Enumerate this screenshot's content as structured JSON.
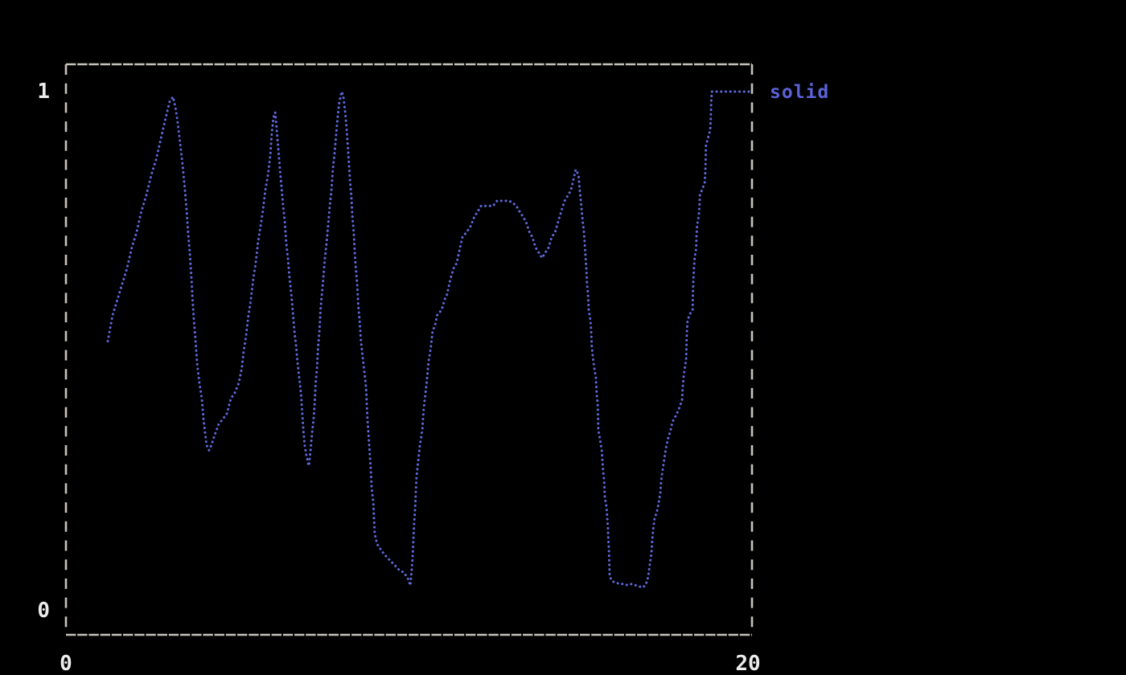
{
  "figure": {
    "background": "#000000",
    "border_color": "#c6c3bb",
    "axis_label_color": "#ececec"
  },
  "axes": {
    "y_top_label": "1",
    "y_bottom_label": "0",
    "x_left_label": "0",
    "x_right_label": "20"
  },
  "legend": {
    "label": "solid",
    "color": "#5a63d9",
    "position": "outside-top-right"
  },
  "chart_data": {
    "type": "line",
    "style": "dotted-braille-terminal",
    "title": "",
    "xlabel": "",
    "ylabel": "",
    "xlim": [
      0,
      20
    ],
    "ylim": [
      0,
      1
    ],
    "x_ticks": [
      0,
      20
    ],
    "y_ticks": [
      0,
      1
    ],
    "grid": false,
    "legend_position": "right-of-plot-top",
    "series": [
      {
        "name": "solid",
        "color": "#5d6ade",
        "marker": "dot",
        "points": [
          [
            1.22,
            0.52
          ],
          [
            1.36,
            0.57
          ],
          [
            1.5,
            0.6
          ],
          [
            1.64,
            0.63
          ],
          [
            1.78,
            0.66
          ],
          [
            1.92,
            0.7
          ],
          [
            2.06,
            0.73
          ],
          [
            2.2,
            0.77
          ],
          [
            2.34,
            0.8
          ],
          [
            2.49,
            0.84
          ],
          [
            2.63,
            0.87
          ],
          [
            2.77,
            0.91
          ],
          [
            2.91,
            0.95
          ],
          [
            3.02,
            0.98
          ],
          [
            3.12,
            0.99
          ],
          [
            3.19,
            0.97
          ],
          [
            3.26,
            0.94
          ],
          [
            3.33,
            0.9
          ],
          [
            3.4,
            0.86
          ],
          [
            3.47,
            0.81
          ],
          [
            3.52,
            0.77
          ],
          [
            3.56,
            0.73
          ],
          [
            3.61,
            0.69
          ],
          [
            3.66,
            0.64
          ],
          [
            3.69,
            0.6
          ],
          [
            3.73,
            0.56
          ],
          [
            3.78,
            0.52
          ],
          [
            3.82,
            0.48
          ],
          [
            3.89,
            0.44
          ],
          [
            3.96,
            0.41
          ],
          [
            4.01,
            0.37
          ],
          [
            4.06,
            0.34
          ],
          [
            4.1,
            0.32
          ],
          [
            4.17,
            0.31
          ],
          [
            4.24,
            0.32
          ],
          [
            4.34,
            0.34
          ],
          [
            4.45,
            0.36
          ],
          [
            4.57,
            0.37
          ],
          [
            4.69,
            0.38
          ],
          [
            4.81,
            0.41
          ],
          [
            4.92,
            0.42
          ],
          [
            5.04,
            0.44
          ],
          [
            5.13,
            0.47
          ],
          [
            5.18,
            0.5
          ],
          [
            5.25,
            0.53
          ],
          [
            5.32,
            0.57
          ],
          [
            5.39,
            0.6
          ],
          [
            5.46,
            0.64
          ],
          [
            5.53,
            0.67
          ],
          [
            5.6,
            0.71
          ],
          [
            5.67,
            0.74
          ],
          [
            5.74,
            0.77
          ],
          [
            5.81,
            0.81
          ],
          [
            5.89,
            0.84
          ],
          [
            5.96,
            0.88
          ],
          [
            6.0,
            0.92
          ],
          [
            6.05,
            0.95
          ],
          [
            6.1,
            0.96
          ],
          [
            6.14,
            0.93
          ],
          [
            6.19,
            0.89
          ],
          [
            6.24,
            0.85
          ],
          [
            6.28,
            0.82
          ],
          [
            6.33,
            0.78
          ],
          [
            6.38,
            0.75
          ],
          [
            6.42,
            0.71
          ],
          [
            6.47,
            0.68
          ],
          [
            6.52,
            0.64
          ],
          [
            6.57,
            0.61
          ],
          [
            6.61,
            0.58
          ],
          [
            6.66,
            0.54
          ],
          [
            6.71,
            0.51
          ],
          [
            6.75,
            0.48
          ],
          [
            6.8,
            0.45
          ],
          [
            6.85,
            0.42
          ],
          [
            6.89,
            0.38
          ],
          [
            6.92,
            0.35
          ],
          [
            6.96,
            0.32
          ],
          [
            7.01,
            0.3
          ],
          [
            7.08,
            0.28
          ],
          [
            7.13,
            0.31
          ],
          [
            7.17,
            0.34
          ],
          [
            7.22,
            0.37
          ],
          [
            7.25,
            0.4
          ],
          [
            7.28,
            0.44
          ],
          [
            7.32,
            0.47
          ],
          [
            7.35,
            0.51
          ],
          [
            7.39,
            0.54
          ],
          [
            7.42,
            0.58
          ],
          [
            7.46,
            0.61
          ],
          [
            7.5,
            0.64
          ],
          [
            7.55,
            0.68
          ],
          [
            7.6,
            0.71
          ],
          [
            7.64,
            0.74
          ],
          [
            7.69,
            0.78
          ],
          [
            7.74,
            0.81
          ],
          [
            7.78,
            0.85
          ],
          [
            7.83,
            0.88
          ],
          [
            7.88,
            0.92
          ],
          [
            7.92,
            0.95
          ],
          [
            7.97,
            0.98
          ],
          [
            8.04,
            1.0
          ],
          [
            8.09,
            0.99
          ],
          [
            8.14,
            0.96
          ],
          [
            8.18,
            0.93
          ],
          [
            8.21,
            0.9
          ],
          [
            8.25,
            0.86
          ],
          [
            8.28,
            0.83
          ],
          [
            8.32,
            0.8
          ],
          [
            8.35,
            0.76
          ],
          [
            8.39,
            0.73
          ],
          [
            8.42,
            0.69
          ],
          [
            8.45,
            0.66
          ],
          [
            8.49,
            0.63
          ],
          [
            8.52,
            0.59
          ],
          [
            8.56,
            0.56
          ],
          [
            8.6,
            0.52
          ],
          [
            8.65,
            0.49
          ],
          [
            8.7,
            0.46
          ],
          [
            8.75,
            0.43
          ],
          [
            8.77,
            0.4
          ],
          [
            8.79,
            0.37
          ],
          [
            8.82,
            0.34
          ],
          [
            8.86,
            0.3
          ],
          [
            8.89,
            0.27
          ],
          [
            8.91,
            0.24
          ],
          [
            8.96,
            0.21
          ],
          [
            8.98,
            0.18
          ],
          [
            9.0,
            0.15
          ],
          [
            9.07,
            0.13
          ],
          [
            9.17,
            0.12
          ],
          [
            9.28,
            0.11
          ],
          [
            9.42,
            0.1
          ],
          [
            9.57,
            0.09
          ],
          [
            9.71,
            0.08
          ],
          [
            9.85,
            0.075
          ],
          [
            9.96,
            0.065
          ],
          [
            10.04,
            0.05
          ],
          [
            10.08,
            0.08
          ],
          [
            10.11,
            0.11
          ],
          [
            10.13,
            0.14
          ],
          [
            10.15,
            0.17
          ],
          [
            10.18,
            0.2
          ],
          [
            10.2,
            0.23
          ],
          [
            10.22,
            0.26
          ],
          [
            10.27,
            0.29
          ],
          [
            10.32,
            0.32
          ],
          [
            10.39,
            0.35
          ],
          [
            10.43,
            0.39
          ],
          [
            10.48,
            0.42
          ],
          [
            10.53,
            0.45
          ],
          [
            10.57,
            0.48
          ],
          [
            10.64,
            0.51
          ],
          [
            10.69,
            0.54
          ],
          [
            10.76,
            0.55
          ],
          [
            10.82,
            0.57
          ],
          [
            10.95,
            0.58
          ],
          [
            11.04,
            0.6
          ],
          [
            11.11,
            0.61
          ],
          [
            11.21,
            0.64
          ],
          [
            11.3,
            0.66
          ],
          [
            11.39,
            0.67
          ],
          [
            11.49,
            0.7
          ],
          [
            11.56,
            0.72
          ],
          [
            11.68,
            0.73
          ],
          [
            11.79,
            0.74
          ],
          [
            11.91,
            0.76
          ],
          [
            12.01,
            0.77
          ],
          [
            12.1,
            0.78
          ],
          [
            12.22,
            0.78
          ],
          [
            12.33,
            0.78
          ],
          [
            12.45,
            0.78
          ],
          [
            12.57,
            0.79
          ],
          [
            12.68,
            0.79
          ],
          [
            12.8,
            0.79
          ],
          [
            12.92,
            0.79
          ],
          [
            13.04,
            0.785
          ],
          [
            13.13,
            0.78
          ],
          [
            13.22,
            0.77
          ],
          [
            13.32,
            0.76
          ],
          [
            13.41,
            0.75
          ],
          [
            13.51,
            0.73
          ],
          [
            13.6,
            0.72
          ],
          [
            13.69,
            0.7
          ],
          [
            13.79,
            0.69
          ],
          [
            13.88,
            0.68
          ],
          [
            13.97,
            0.69
          ],
          [
            14.07,
            0.7
          ],
          [
            14.16,
            0.72
          ],
          [
            14.26,
            0.73
          ],
          [
            14.35,
            0.75
          ],
          [
            14.44,
            0.77
          ],
          [
            14.54,
            0.79
          ],
          [
            14.63,
            0.8
          ],
          [
            14.72,
            0.81
          ],
          [
            14.79,
            0.83
          ],
          [
            14.86,
            0.85
          ],
          [
            14.94,
            0.84
          ],
          [
            14.98,
            0.81
          ],
          [
            15.01,
            0.79
          ],
          [
            15.05,
            0.76
          ],
          [
            15.1,
            0.73
          ],
          [
            15.12,
            0.71
          ],
          [
            15.15,
            0.68
          ],
          [
            15.17,
            0.66
          ],
          [
            15.19,
            0.63
          ],
          [
            15.22,
            0.61
          ],
          [
            15.24,
            0.58
          ],
          [
            15.29,
            0.56
          ],
          [
            15.31,
            0.54
          ],
          [
            15.33,
            0.51
          ],
          [
            15.36,
            0.49
          ],
          [
            15.4,
            0.47
          ],
          [
            15.45,
            0.45
          ],
          [
            15.47,
            0.42
          ],
          [
            15.5,
            0.4
          ],
          [
            15.51,
            0.38
          ],
          [
            15.52,
            0.35
          ],
          [
            15.57,
            0.33
          ],
          [
            15.62,
            0.31
          ],
          [
            15.64,
            0.29
          ],
          [
            15.66,
            0.27
          ],
          [
            15.69,
            0.25
          ],
          [
            15.71,
            0.22
          ],
          [
            15.76,
            0.2
          ],
          [
            15.78,
            0.18
          ],
          [
            15.8,
            0.16
          ],
          [
            15.81,
            0.14
          ],
          [
            15.83,
            0.12
          ],
          [
            15.84,
            0.09
          ],
          [
            15.85,
            0.07
          ],
          [
            15.9,
            0.06
          ],
          [
            15.99,
            0.056
          ],
          [
            16.11,
            0.054
          ],
          [
            16.22,
            0.053
          ],
          [
            16.34,
            0.051
          ],
          [
            16.46,
            0.053
          ],
          [
            16.58,
            0.051
          ],
          [
            16.69,
            0.049
          ],
          [
            16.81,
            0.046
          ],
          [
            16.9,
            0.051
          ],
          [
            16.97,
            0.066
          ],
          [
            17.02,
            0.09
          ],
          [
            17.07,
            0.113
          ],
          [
            17.09,
            0.136
          ],
          [
            17.12,
            0.159
          ],
          [
            17.16,
            0.179
          ],
          [
            17.23,
            0.193
          ],
          [
            17.28,
            0.209
          ],
          [
            17.33,
            0.23
          ],
          [
            17.35,
            0.252
          ],
          [
            17.4,
            0.274
          ],
          [
            17.44,
            0.292
          ],
          [
            17.49,
            0.314
          ],
          [
            17.56,
            0.334
          ],
          [
            17.63,
            0.349
          ],
          [
            17.68,
            0.365
          ],
          [
            17.75,
            0.373
          ],
          [
            17.84,
            0.385
          ],
          [
            17.96,
            0.406
          ],
          [
            17.98,
            0.43
          ],
          [
            18.01,
            0.453
          ],
          [
            18.05,
            0.473
          ],
          [
            18.08,
            0.484
          ],
          [
            18.09,
            0.512
          ],
          [
            18.1,
            0.535
          ],
          [
            18.12,
            0.558
          ],
          [
            18.17,
            0.57
          ],
          [
            18.27,
            0.581
          ],
          [
            18.28,
            0.617
          ],
          [
            18.29,
            0.638
          ],
          [
            18.31,
            0.662
          ],
          [
            18.33,
            0.682
          ],
          [
            18.37,
            0.697
          ],
          [
            18.38,
            0.72
          ],
          [
            18.4,
            0.743
          ],
          [
            18.45,
            0.762
          ],
          [
            18.47,
            0.782
          ],
          [
            18.48,
            0.801
          ],
          [
            18.62,
            0.824
          ],
          [
            18.64,
            0.847
          ],
          [
            18.65,
            0.873
          ],
          [
            18.66,
            0.897
          ],
          [
            18.78,
            0.926
          ],
          [
            18.8,
            0.949
          ],
          [
            18.81,
            0.978
          ],
          [
            18.83,
            1.0
          ],
          [
            18.94,
            1.0
          ],
          [
            19.1,
            1.0
          ],
          [
            19.25,
            1.0
          ],
          [
            19.4,
            1.0
          ],
          [
            19.55,
            1.0
          ],
          [
            19.7,
            1.0
          ],
          [
            19.85,
            1.0
          ],
          [
            20.0,
            1.0
          ]
        ]
      }
    ]
  }
}
